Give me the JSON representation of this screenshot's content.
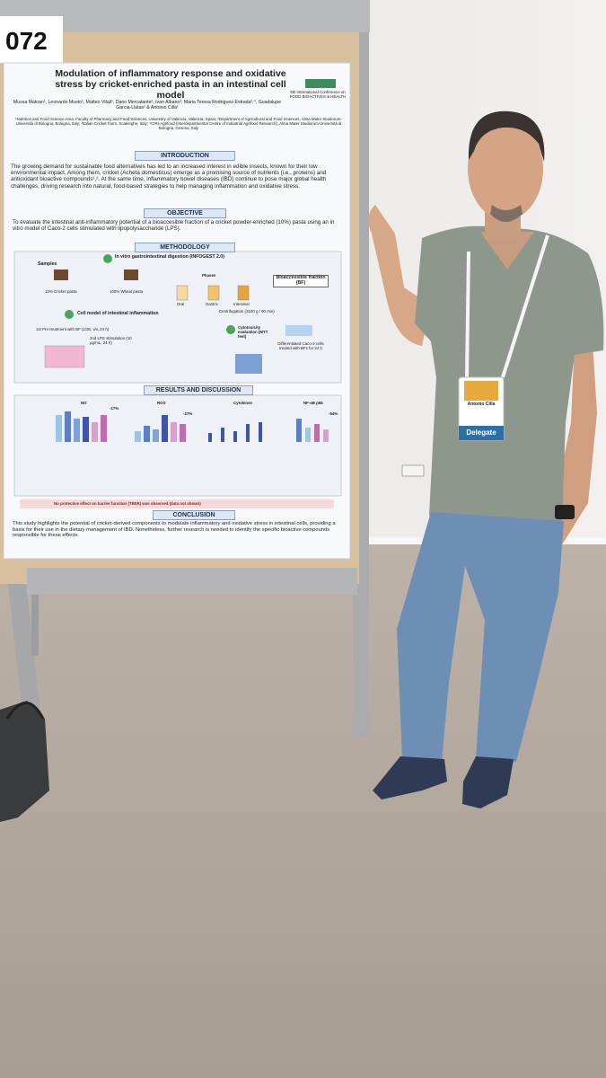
{
  "board_number": "072",
  "poster": {
    "title": "Modulation of inflammatory response and oxidative stress by cricket-enriched pasta in an intestinal cell model",
    "conference": "5th International Conference on FOOD BIOACTIVES & HEALTH",
    "authors": "Mussa Makran¹, Leonardo Musto¹, Matteo Vitali¹, Dario Mercatante², Ivan Albano³, Maria Teresa Rodriguez-Estrada²,⁴, Guadalupe Garcia-Llatas¹ & Antonio Cilla¹",
    "affiliations": "¹Nutrition and Food Science Area, Faculty of Pharmacy and Food Sciences, University of Valencia, Valencia, Spain; ²Department of Agricultural and Food Sciences, Alma Mater Studiorum-Università di Bologna, Bologna, Italy; ³Italian Cricket Farm, Scalenghe, Italy; ⁴CIRI-Agrifood (Interdepartmental Centre of Industrial Agrifood Research), Alma Mater Studiorum-Università di Bologna, Cesena, Italy",
    "sections": {
      "introduction": {
        "heading": "INTRODUCTION",
        "text": "The growing demand for sustainable food alternatives has led to an increased interest in edible insects, known for their low environmental impact. Among them, cricket (Acheta domesticus) emerge as a promising source of nutrients (i.e., proteins) and antioxidant bioactive compounds¹,². At the same time, inflammatory bowel diseases (IBD) continue to pose major global health challenges, driving research into natural, food-based strategies to help managing inflammation and oxidative stress."
      },
      "objective": {
        "heading": "OBJECTIVE",
        "text": "To evaluate the intestinal anti-inflammatory potential of a bioaccesible fraction of a cricket powder-enriched (10%) pasta using an in vitro model of Caco-2 cells stimulated with lipopolysaccharide (LPS)."
      },
      "methodology": {
        "heading": "METHODOLOGY",
        "samples": "Samples",
        "digestion": "In vitro gastrointestinal digestion (INFOGEST 2.0)",
        "sample_1": "10% Cricket pasta",
        "sample_2": "100% Wheat pasta",
        "phases": "Phases",
        "phase_1": "Oral",
        "phase_2": "Gastric",
        "phase_3": "Intestinal",
        "bf": "Bioaccessible fraction (BF)",
        "centrifugation": "Centrifugation (3100 g / 90 min)",
        "cell_model": "Cell model of intestinal inflammation",
        "pretreatment": "1st Pre-treatment with BF (1/30, v/v, 24 h)",
        "stimulation": "2nd LPS stimulation (10 µg/mL, 24 h)",
        "cytotoxicity": "Cytotoxicity evaluation (MTT test)",
        "cells": "Differentiated Caco-2 cells treated with BFs for 24 h"
      },
      "results": {
        "heading": "RESULTS AND DISCUSSION",
        "panels": [
          "NO",
          "ROS",
          "Cytokines",
          "NF-κB p65"
        ],
        "changes": [
          "-17%",
          "-27%",
          "-54%"
        ],
        "note": "No protective effect on barrier function (TEER) was observed (data not shown)"
      },
      "conclusion": {
        "heading": "CONCLUSION",
        "text": "This study highlights the potential of cricket-derived components to modulate inflammatory and oxidative stress in intestinal cells, providing a basis for their use in the dietary management of IBD. Nonetheless, further research is needed to identify the specific bioactive compounds responsible for these effects."
      }
    }
  },
  "badge": {
    "name": "Antonio Cilla",
    "role": "Delegate"
  }
}
